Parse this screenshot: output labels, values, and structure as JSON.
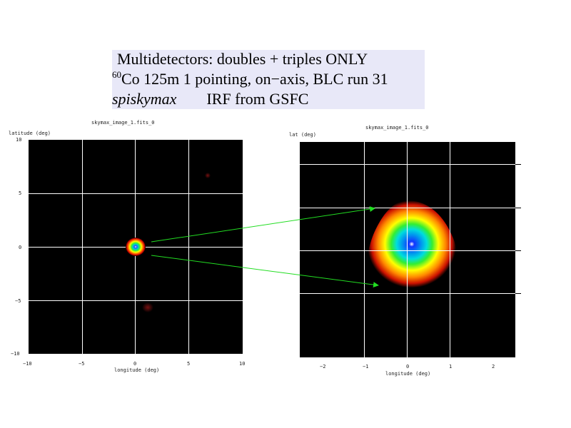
{
  "title": {
    "line1": "Multidetectors: doubles + triples ONLY",
    "line2_sup": "60",
    "line2": "Co 125m   1 pointing, on−axis, BLC run 31",
    "line3_italic": "spiskymax",
    "line3_rest": "IRF from GSFC"
  },
  "left_plot": {
    "title": "skymax_image_1.fits_0",
    "ylabel": "latitude (deg)",
    "xlabel": "longitude (deg)",
    "yticks": [
      "10",
      "5",
      "0",
      "−5",
      "−10"
    ],
    "xticks": [
      "−10",
      "−5",
      "0",
      "5",
      "10"
    ]
  },
  "right_plot": {
    "title": "skymax_image_1.fits_0",
    "ylabel": "lat (deg)",
    "xlabel": "longitude (deg)",
    "xticks": [
      "−2",
      "−1",
      "0",
      "1",
      "2"
    ]
  },
  "colors": {
    "background": "#ffffff",
    "title_box": "#e8e8f8",
    "plot_bg": "#000000",
    "grid": "#ffffff",
    "arrow": "#22dd22"
  }
}
